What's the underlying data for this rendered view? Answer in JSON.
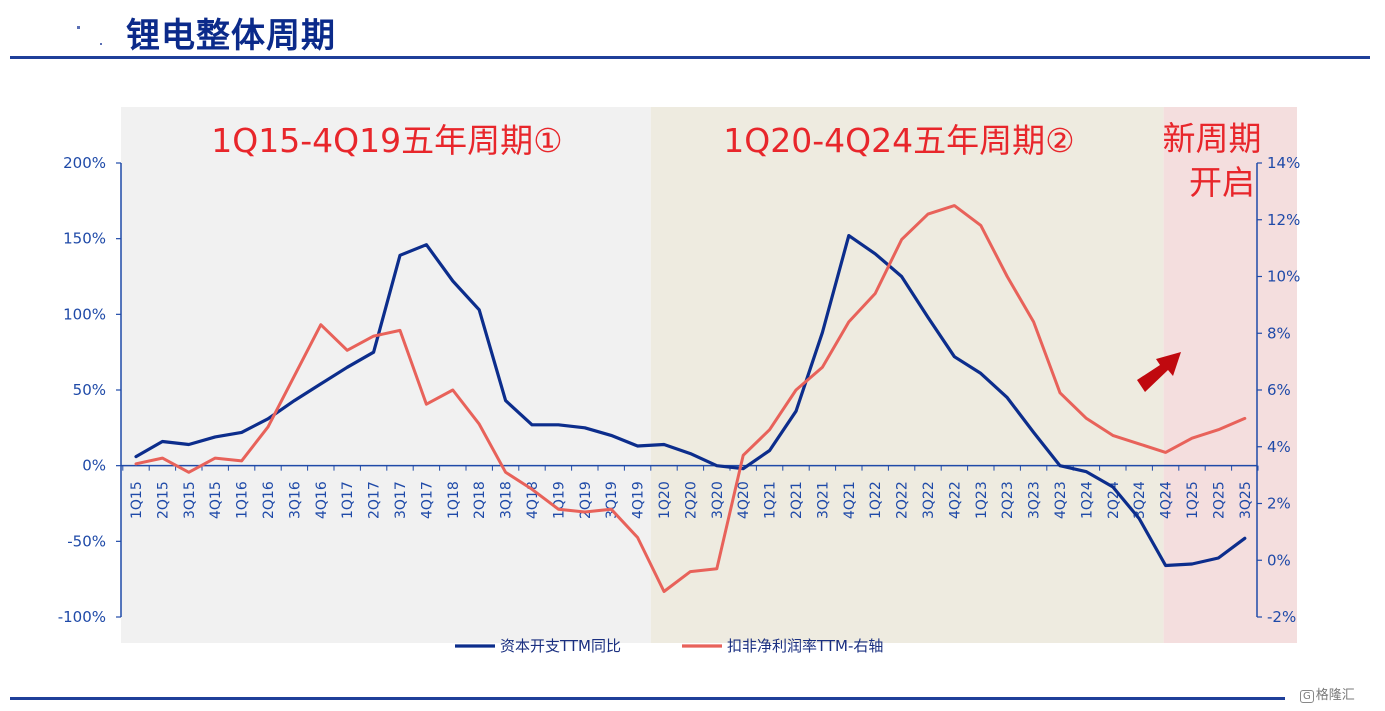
{
  "page": {
    "title": "锂电整体周期",
    "watermark": "格隆汇",
    "watermark_badge": "G"
  },
  "chart_data": {
    "type": "line",
    "title": "",
    "xlabel": "",
    "ylabel": "",
    "x": [
      "1Q15",
      "2Q15",
      "3Q15",
      "4Q15",
      "1Q16",
      "2Q16",
      "3Q16",
      "4Q16",
      "1Q17",
      "2Q17",
      "3Q17",
      "4Q17",
      "1Q18",
      "2Q18",
      "3Q18",
      "4Q18",
      "1Q19",
      "2Q19",
      "3Q19",
      "4Q19",
      "1Q20",
      "2Q20",
      "3Q20",
      "4Q20",
      "1Q21",
      "2Q21",
      "3Q21",
      "4Q21",
      "1Q22",
      "2Q22",
      "3Q22",
      "4Q22",
      "1Q23",
      "2Q23",
      "3Q23",
      "4Q23",
      "1Q24",
      "2Q24",
      "3Q24",
      "4Q24",
      "1Q25",
      "2Q25",
      "3Q25"
    ],
    "y_left": {
      "ylim": [
        -100,
        200
      ],
      "ticks": [
        -100,
        -50,
        0,
        50,
        100,
        150,
        200
      ],
      "tick_labels": [
        "-100%",
        "-50%",
        "0%",
        "50%",
        "100%",
        "150%",
        "200%"
      ]
    },
    "y_right": {
      "ylim": [
        -2,
        14
      ],
      "ticks": [
        -2,
        0,
        2,
        4,
        6,
        8,
        10,
        12,
        14
      ],
      "tick_labels": [
        "-2%",
        "0%",
        "2%",
        "4%",
        "6%",
        "8%",
        "10%",
        "12%",
        "14%"
      ]
    },
    "series": [
      {
        "name": "资本开支TTM同比",
        "axis": "left",
        "color": "#0c2d8c",
        "values": [
          6,
          16,
          14,
          19,
          22,
          31,
          43,
          54,
          65,
          75,
          139,
          146,
          122,
          103,
          43,
          27,
          27,
          25,
          20,
          13,
          14,
          8,
          0,
          -2,
          10,
          36,
          88,
          152,
          140,
          125,
          98,
          72,
          61,
          45,
          22,
          0,
          -4,
          -14,
          -35,
          -66,
          -65,
          -61,
          -48
        ]
      },
      {
        "name": "扣非净利润率TTM-右轴",
        "axis": "right",
        "color": "#e8625a",
        "values": [
          3.4,
          3.6,
          3.1,
          3.6,
          3.5,
          4.7,
          6.5,
          8.3,
          7.4,
          7.9,
          8.1,
          5.5,
          6.0,
          4.8,
          3.1,
          2.5,
          1.8,
          1.7,
          1.8,
          0.8,
          -1.1,
          -0.4,
          -0.3,
          3.7,
          4.6,
          6.0,
          6.8,
          8.4,
          9.4,
          11.3,
          12.2,
          12.5,
          11.8,
          10.0,
          8.4,
          5.9,
          5.0,
          4.4,
          4.1,
          3.8,
          4.3,
          4.6,
          5.0
        ]
      }
    ],
    "regions": [
      {
        "label": "1Q15-4Q19五年周期①",
        "from": "1Q15",
        "to": "4Q19",
        "color": "#f1f1f1"
      },
      {
        "label": "1Q20-4Q24五年周期②",
        "from": "4Q19",
        "to": "4Q24",
        "color": "#eeebe0"
      },
      {
        "label_line1": "新周期",
        "label_line2": "开启",
        "from": "4Q24",
        "to": "3Q25",
        "color": "#f4dede"
      }
    ],
    "annotation_color": "#e8262b",
    "arrow_color": "#c0090f",
    "axis_color": "#1f4aa8",
    "grid": false,
    "legend_position": "bottom-center"
  }
}
